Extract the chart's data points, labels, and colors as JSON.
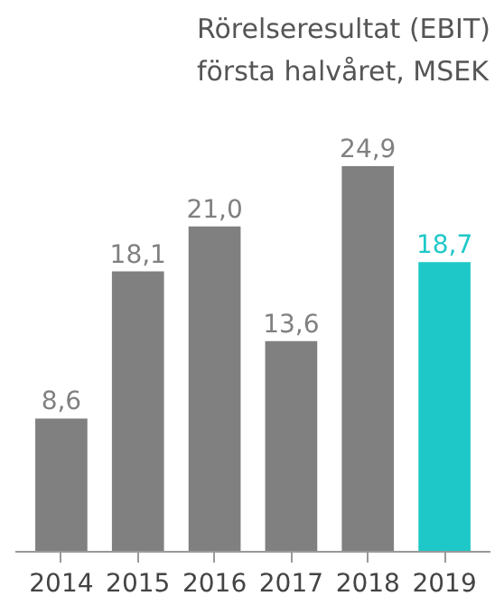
{
  "chart_data": {
    "type": "bar",
    "title": "Rörelseresultat (EBIT)\nförsta halvåret, MSEK",
    "categories": [
      "2014",
      "2015",
      "2016",
      "2017",
      "2018",
      "2019"
    ],
    "values": [
      8.6,
      18.1,
      21.0,
      13.6,
      24.9,
      18.7
    ],
    "value_labels": [
      "8,6",
      "18,1",
      "21,0",
      "13,6",
      "24,9",
      "18,7"
    ],
    "colors": [
      "#808080",
      "#808080",
      "#808080",
      "#808080",
      "#808080",
      "#1fc8c8"
    ],
    "grid": false
  }
}
